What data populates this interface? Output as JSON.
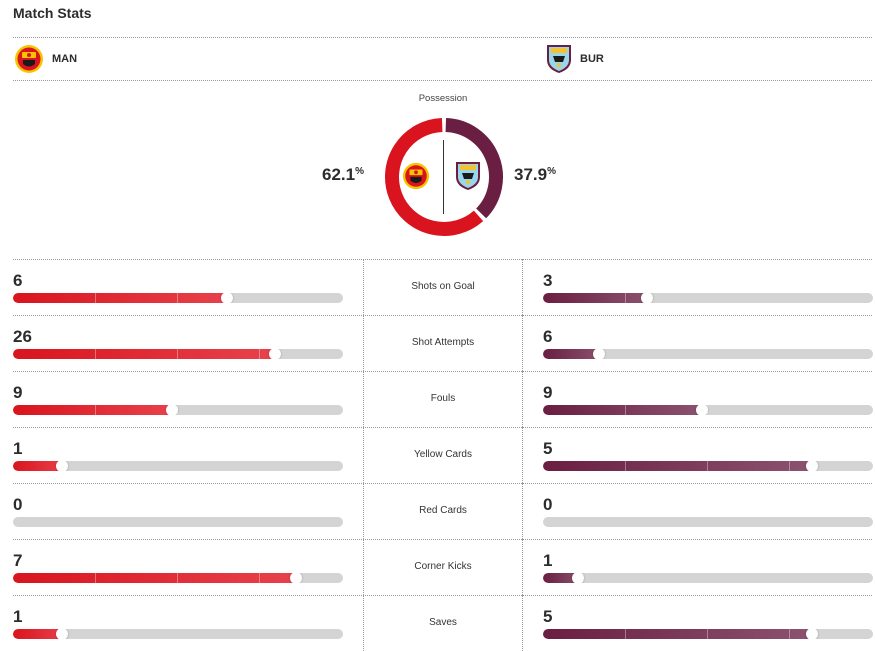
{
  "header": {
    "title": "Match Stats"
  },
  "teams": {
    "home": {
      "abbr": "MAN",
      "color": "#d9141e",
      "crest_icon": "manchester-united-crest-icon"
    },
    "away": {
      "abbr": "BUR",
      "color": "#6a1e42",
      "crest_icon": "burnley-crest-icon"
    }
  },
  "possession": {
    "label": "Possession",
    "home": "62.1",
    "away": "37.9",
    "unit": "%",
    "home_value": 62.1,
    "away_value": 37.9
  },
  "stats": [
    {
      "label": "Shots on Goal",
      "home": "6",
      "away": "3"
    },
    {
      "label": "Shot Attempts",
      "home": "26",
      "away": "6"
    },
    {
      "label": "Fouls",
      "home": "9",
      "away": "9"
    },
    {
      "label": "Yellow Cards",
      "home": "1",
      "away": "5"
    },
    {
      "label": "Red Cards",
      "home": "0",
      "away": "0"
    },
    {
      "label": "Corner Kicks",
      "home": "7",
      "away": "1"
    },
    {
      "label": "Saves",
      "home": "1",
      "away": "5"
    }
  ]
}
